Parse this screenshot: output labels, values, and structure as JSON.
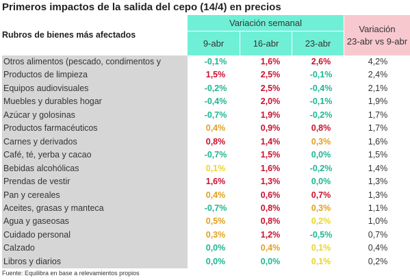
{
  "title": "Primeros impactos de la salida del cepo (14/4) en precios",
  "headers": {
    "rubros": "Rubros de bienes más afectados",
    "semanal": "Variación semanal",
    "days": [
      "9-abr",
      "16-abr",
      "23-abr"
    ],
    "var_line1": "Variación",
    "var_line2": "23-abr vs 9-abr"
  },
  "colors": {
    "green": "#1fb592",
    "red": "#c8102e",
    "orange": "#e0a020",
    "yellow": "#e8d52a",
    "header_teal": "#6ff0d6",
    "header_pink": "#f8c8cf"
  },
  "rows": [
    {
      "name": "Otros alimentos (pescado, condimentos y",
      "v": [
        "-0,1%",
        "1,6%",
        "2,6%"
      ],
      "c": [
        "green",
        "red",
        "red"
      ],
      "var": "4,2%"
    },
    {
      "name": "Productos de limpieza",
      "v": [
        "1,5%",
        "2,5%",
        "-0,1%"
      ],
      "c": [
        "red",
        "red",
        "green"
      ],
      "var": "2,4%"
    },
    {
      "name": "Equipos audiovisuales",
      "v": [
        "-0,2%",
        "2,5%",
        "-0,4%"
      ],
      "c": [
        "green",
        "red",
        "green"
      ],
      "var": "2,1%"
    },
    {
      "name": "Muebles y durables hogar",
      "v": [
        "-0,4%",
        "2,0%",
        "-0,1%"
      ],
      "c": [
        "green",
        "red",
        "green"
      ],
      "var": "1,9%"
    },
    {
      "name": "Azúcar y golosinas",
      "v": [
        "-0,7%",
        "1,9%",
        "-0,2%"
      ],
      "c": [
        "green",
        "red",
        "green"
      ],
      "var": "1,7%"
    },
    {
      "name": "Productos farmacéuticos",
      "v": [
        "0,4%",
        "0,9%",
        "0,8%"
      ],
      "c": [
        "orange",
        "red",
        "red"
      ],
      "var": "1,7%"
    },
    {
      "name": "Carnes y derivados",
      "v": [
        "0,8%",
        "1,4%",
        "0,3%"
      ],
      "c": [
        "red",
        "red",
        "orange"
      ],
      "var": "1,6%"
    },
    {
      "name": "Café, té, yerba y cacao",
      "v": [
        "-0,7%",
        "1,5%",
        "0,0%"
      ],
      "c": [
        "green",
        "red",
        "green"
      ],
      "var": "1,5%"
    },
    {
      "name": "Bebidas alcohólicas",
      "v": [
        "0,1%",
        "1,6%",
        "-0,2%"
      ],
      "c": [
        "yellow",
        "red",
        "green"
      ],
      "var": "1,4%"
    },
    {
      "name": "Prendas de vestir",
      "v": [
        "1,6%",
        "1,3%",
        "0,0%"
      ],
      "c": [
        "red",
        "red",
        "green"
      ],
      "var": "1,3%"
    },
    {
      "name": "Pan y cereales",
      "v": [
        "0,4%",
        "0,6%",
        "0,7%"
      ],
      "c": [
        "orange",
        "red",
        "red"
      ],
      "var": "1,3%"
    },
    {
      "name": "Aceites, grasas y manteca",
      "v": [
        "-0,7%",
        "0,8%",
        "0,3%"
      ],
      "c": [
        "green",
        "red",
        "orange"
      ],
      "var": "1,1%"
    },
    {
      "name": "Agua y gaseosas",
      "v": [
        "0,5%",
        "0,8%",
        "0,2%"
      ],
      "c": [
        "orange",
        "red",
        "yellow"
      ],
      "var": "1,0%"
    },
    {
      "name": "Cuidado personal",
      "v": [
        "0,3%",
        "1,2%",
        "-0,5%"
      ],
      "c": [
        "orange",
        "red",
        "green"
      ],
      "var": "0,7%"
    },
    {
      "name": "Calzado",
      "v": [
        "0,0%",
        "0,4%",
        "0,1%"
      ],
      "c": [
        "green",
        "orange",
        "yellow"
      ],
      "var": "0,4%"
    },
    {
      "name": "Libros y diarios",
      "v": [
        "0,0%",
        "0,0%",
        "0,1%"
      ],
      "c": [
        "green",
        "green",
        "yellow"
      ],
      "var": "0,2%"
    }
  ],
  "source": "Fuente: Equilibra en base a relevamientos propios"
}
